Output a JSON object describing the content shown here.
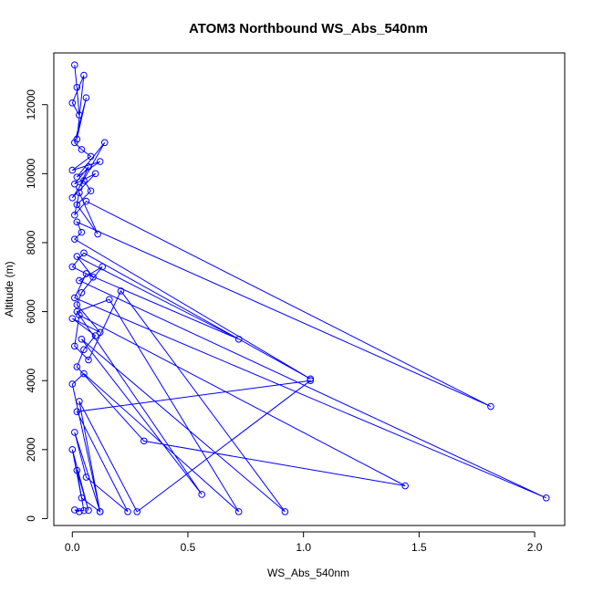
{
  "chart_data": {
    "type": "line",
    "title": "ATOM3 Northbound WS_Abs_540nm",
    "xlabel": "WS_Abs_540nm",
    "ylabel": "Altitude (m)",
    "xlim": [
      -0.08,
      2.13
    ],
    "ylim": [
      -200,
      13500
    ],
    "xticks": [
      0.0,
      0.5,
      1.0,
      1.5,
      2.0
    ],
    "xtick_labels": [
      "0.0",
      "0.5",
      "1.0",
      "1.5",
      "2.0"
    ],
    "yticks": [
      0,
      2000,
      4000,
      6000,
      8000,
      10000,
      12000
    ],
    "ytick_labels": [
      "0",
      "2000",
      "4000",
      "6000",
      "8000",
      "10000",
      "12000"
    ],
    "grid": false,
    "line_color": "#0000ff",
    "marker": "open-circle",
    "series": [
      {
        "x": [
          0.01,
          0.02,
          0.03,
          0.0,
          0.05,
          0.02,
          0.06,
          0.01,
          0.04,
          0.08,
          0.0,
          0.12,
          0.02,
          0.14,
          0.03,
          0.07,
          0.01,
          0.1,
          0.0,
          0.05,
          0.08,
          0.02,
          0.11,
          0.03,
          0.01,
          0.06,
          1.81,
          0.02,
          0.04,
          0.01,
          1.03,
          0.05,
          0.0,
          0.09,
          0.02,
          0.72,
          0.06,
          0.01,
          2.05,
          0.03,
          0.13,
          0.04,
          0.02,
          0.12,
          0.0,
          0.1,
          0.05,
          0.02,
          0.31,
          1.44,
          0.03,
          0.01,
          0.07,
          0.21,
          0.92,
          0.04,
          0.56,
          0.02,
          0.16,
          0.72,
          0.05,
          0.0,
          0.12,
          0.03,
          0.28,
          1.03,
          0.02,
          0.24,
          0.06,
          0.01,
          0.12,
          0.04,
          0.0,
          0.07,
          0.02,
          0.05,
          0.01,
          0.03
        ],
        "y": [
          13150,
          12500,
          11700,
          12050,
          12850,
          11000,
          12200,
          10900,
          10700,
          10500,
          10100,
          10350,
          9900,
          10900,
          9600,
          10200,
          9700,
          10000,
          9300,
          9800,
          9500,
          9100,
          8250,
          9450,
          8800,
          9200,
          3250,
          8600,
          8300,
          8100,
          4050,
          7700,
          7300,
          7000,
          7600,
          5200,
          7100,
          6400,
          600,
          6900,
          7300,
          6550,
          6200,
          5400,
          5800,
          5300,
          4900,
          4400,
          2250,
          950,
          5900,
          5000,
          4600,
          6600,
          200,
          5200,
          700,
          6000,
          6350,
          200,
          4200,
          3900,
          200,
          3400,
          200,
          4000,
          3100,
          200,
          1200,
          2500,
          200,
          600,
          2000,
          240,
          1400,
          230,
          250,
          200
        ]
      }
    ]
  }
}
